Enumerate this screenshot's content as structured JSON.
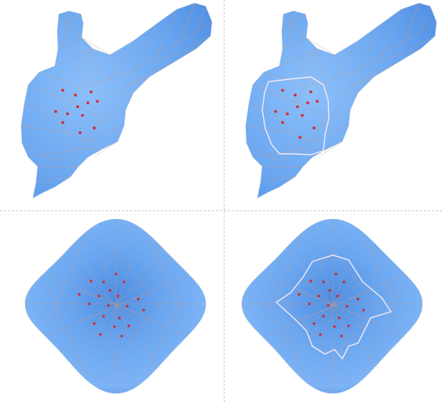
{
  "colors": {
    "background": "#ffffff",
    "mesh_fill": "#6aa6f0",
    "mesh_fill_dark": "#4d8de3",
    "mesh_highlight": "#8cc0fa",
    "wireframe": "#c89a8a",
    "feature_point": "#e02020",
    "patch_boundary": "#f4e8f4",
    "divider": "#c8c8c8"
  },
  "panels": [
    {
      "id": "tl",
      "model": "bone-mesh",
      "shows_boundary": false
    },
    {
      "id": "tr",
      "model": "bone-mesh",
      "shows_boundary": true
    },
    {
      "id": "bl",
      "model": "rounded-blob",
      "shows_boundary": false
    },
    {
      "id": "br",
      "model": "rounded-blob",
      "shows_boundary": true
    }
  ]
}
